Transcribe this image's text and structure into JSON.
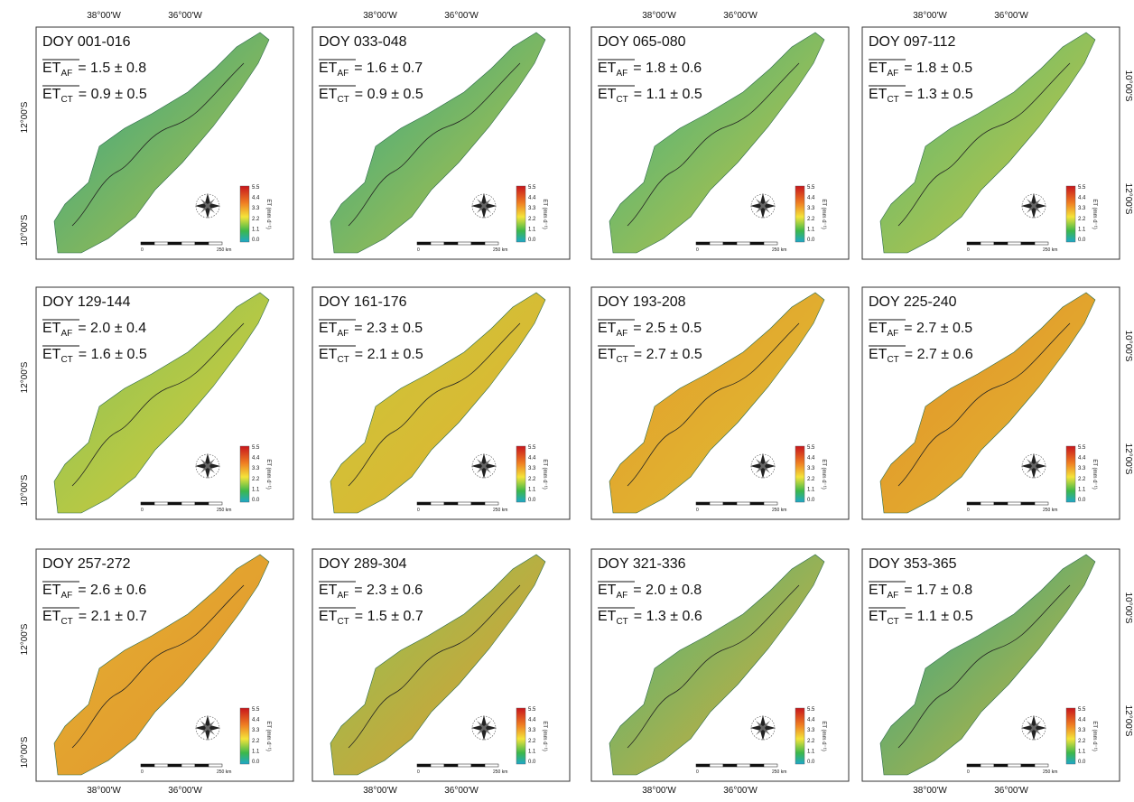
{
  "figure": {
    "lon_labels": [
      "38°00'W",
      "36°00'W"
    ],
    "lat_labels_left": [
      "12°00'S",
      "10°00'S"
    ],
    "lat_labels_right": [
      "10°00'S",
      "12°00'S"
    ],
    "et_symbol": "ET",
    "af_sub": "AF",
    "ct_sub": "CT",
    "colorbar_title": "ET (mm d⁻¹)",
    "colorbar_ticks": [
      "5.5",
      "4.4",
      "3.3",
      "2.2",
      "1.1",
      "0.0"
    ],
    "scale_labels": [
      "0",
      "250 km"
    ],
    "panels": [
      {
        "doy": "DOY 001-016",
        "et_af": "= 1.5 ± 0.8",
        "et_ct": "= 0.9 ± 0.5",
        "map_colors": [
          "#2fa58d",
          "#b9c23e"
        ]
      },
      {
        "doy": "DOY 033-048",
        "et_af": "= 1.6 ± 0.7",
        "et_ct": "= 0.9 ± 0.5",
        "map_colors": [
          "#33a88a",
          "#bfc43e"
        ]
      },
      {
        "doy": "DOY 065-080",
        "et_af": "= 1.8 ± 0.6",
        "et_ct": "= 1.1 ± 0.5",
        "map_colors": [
          "#3fb085",
          "#c9c63c"
        ]
      },
      {
        "doy": "DOY 097-112",
        "et_af": "= 1.8 ± 0.5",
        "et_ct": "= 1.3 ± 0.5",
        "map_colors": [
          "#55b87a",
          "#d0c83a"
        ]
      },
      {
        "doy": "DOY 129-144",
        "et_af": "= 2.0 ± 0.4",
        "et_ct": "= 1.6 ± 0.5",
        "map_colors": [
          "#86c25a",
          "#dccd34"
        ]
      },
      {
        "doy": "DOY 161-176",
        "et_af": "= 2.3 ± 0.5",
        "et_ct": "= 2.1 ± 0.5",
        "map_colors": [
          "#c8c83c",
          "#e3b12e"
        ]
      },
      {
        "doy": "DOY 193-208",
        "et_af": "= 2.5 ± 0.5",
        "et_ct": "= 2.7 ± 0.5",
        "map_colors": [
          "#e39a2c",
          "#dfbf32"
        ]
      },
      {
        "doy": "DOY 225-240",
        "et_af": "= 2.7 ± 0.5",
        "et_ct": "= 2.7 ± 0.6",
        "map_colors": [
          "#e4902a",
          "#e0b730"
        ]
      },
      {
        "doy": "DOY 257-272",
        "et_af": "= 2.6 ± 0.6",
        "et_ct": "= 2.1 ± 0.7",
        "map_colors": [
          "#e2b032",
          "#e4942c"
        ]
      },
      {
        "doy": "DOY 289-304",
        "et_af": "= 2.3 ± 0.6",
        "et_ct": "= 1.5 ± 0.7",
        "map_colors": [
          "#8cc456",
          "#e39a2e"
        ]
      },
      {
        "doy": "DOY 321-336",
        "et_af": "= 2.0 ± 0.8",
        "et_ct": "= 1.3 ± 0.6",
        "map_colors": [
          "#4ab47e",
          "#dfae30"
        ]
      },
      {
        "doy": "DOY 353-365",
        "et_af": "= 1.7 ± 0.8",
        "et_ct": "= 1.1 ± 0.5",
        "map_colors": [
          "#30a68c",
          "#d0b634"
        ]
      }
    ]
  }
}
